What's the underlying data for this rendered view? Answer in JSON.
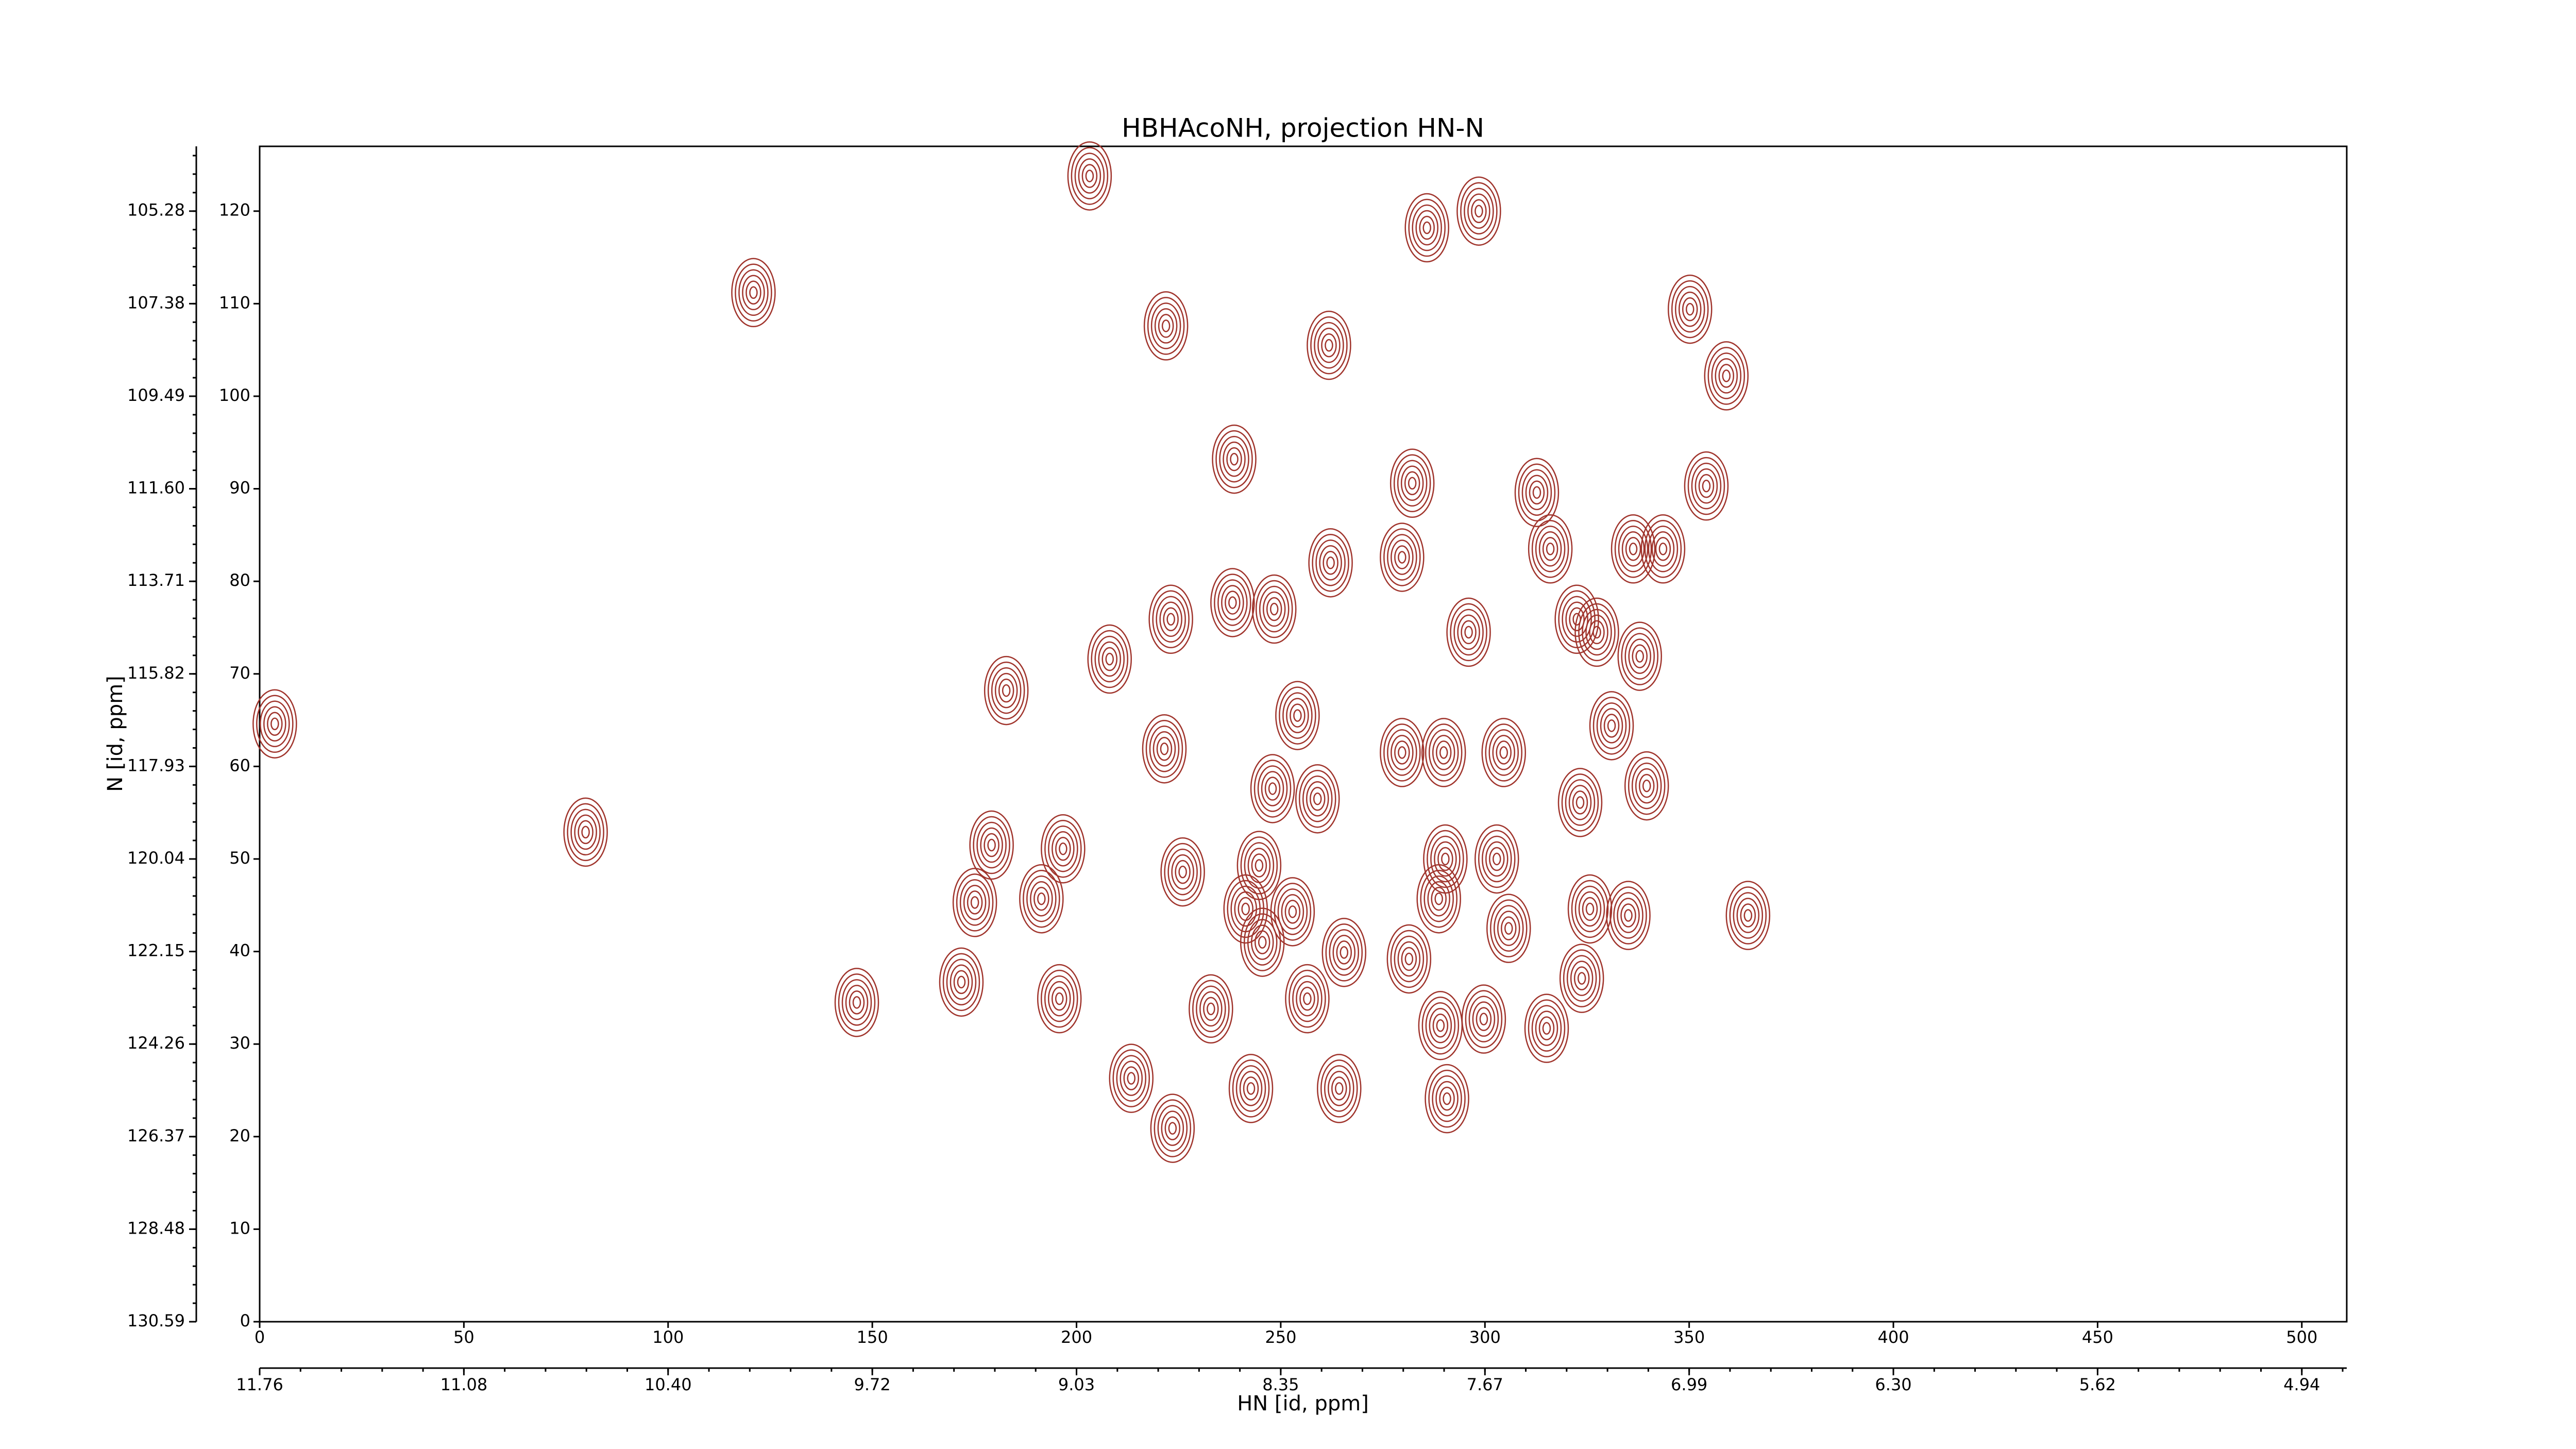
{
  "chart_data": {
    "type": "contour",
    "title": "HBHAcoNH, projection HN-N",
    "x_label": "HN [id, ppm]",
    "y_label": "N [id, ppm]",
    "color": "#a0342c",
    "xlim": [
      0,
      511
    ],
    "ylim": [
      0,
      127
    ],
    "xticks": [
      0,
      50,
      100,
      150,
      200,
      250,
      300,
      350,
      400,
      450,
      500
    ],
    "yticks": [
      0,
      10,
      20,
      30,
      40,
      50,
      60,
      70,
      80,
      90,
      100,
      110,
      120
    ],
    "x_ppm_ticks": [
      {
        "value": 0,
        "label": "11.76"
      },
      {
        "value": 50,
        "label": "11.08"
      },
      {
        "value": 100,
        "label": "10.40"
      },
      {
        "value": 150,
        "label": "9.72"
      },
      {
        "value": 200,
        "label": "9.03"
      },
      {
        "value": 250,
        "label": "8.35"
      },
      {
        "value": 300,
        "label": "7.67"
      },
      {
        "value": 350,
        "label": "6.99"
      },
      {
        "value": 400,
        "label": "6.30"
      },
      {
        "value": 450,
        "label": "5.62"
      },
      {
        "value": 500,
        "label": "4.94"
      }
    ],
    "y_ppm_ticks": [
      {
        "value": 0,
        "label": "130.59"
      },
      {
        "value": 10,
        "label": "128.48"
      },
      {
        "value": 20,
        "label": "126.37"
      },
      {
        "value": 30,
        "label": "124.26"
      },
      {
        "value": 40,
        "label": "122.15"
      },
      {
        "value": 50,
        "label": "120.04"
      },
      {
        "value": 60,
        "label": "117.93"
      },
      {
        "value": 70,
        "label": "115.82"
      },
      {
        "value": 80,
        "label": "113.71"
      },
      {
        "value": 90,
        "label": "111.60"
      },
      {
        "value": 100,
        "label": "109.49"
      },
      {
        "value": 110,
        "label": "107.38"
      },
      {
        "value": 120,
        "label": "105.28"
      }
    ],
    "x": [
      203.2,
      285.8,
      298.5,
      120.9,
      221.9,
      261.8,
      350.2,
      359.1,
      238.6,
      282.2,
      312.7,
      354.2,
      262.2,
      279.7,
      316.0,
      336.3,
      343.6,
      238.2,
      223.1,
      248.4,
      208.1,
      296.0,
      322.5,
      327.4,
      337.9,
      182.8,
      254.1,
      331.0,
      221.5,
      279.7,
      289.9,
      304.6,
      248.0,
      259.0,
      323.3,
      339.6,
      79.8,
      179.2,
      196.7,
      226.0,
      244.7,
      290.3,
      302.9,
      175.1,
      191.4,
      241.4,
      252.9,
      288.7,
      325.7,
      335.1,
      364.4,
      245.5,
      265.5,
      281.4,
      305.8,
      171.8,
      195.8,
      146.2,
      232.9,
      256.5,
      299.7,
      315.1,
      323.7,
      213.4,
      242.7,
      264.3,
      290.7,
      223.5,
      3.7,
      289.1
    ],
    "values": [
      123.8,
      118.2,
      120.0,
      111.2,
      107.6,
      105.5,
      109.4,
      102.2,
      93.2,
      90.6,
      89.6,
      90.3,
      82.0,
      82.6,
      83.5,
      83.5,
      83.5,
      77.7,
      75.9,
      77.0,
      71.6,
      74.5,
      75.9,
      74.5,
      71.9,
      68.2,
      65.5,
      64.4,
      61.9,
      61.5,
      61.5,
      61.5,
      57.6,
      56.5,
      56.1,
      57.9,
      52.9,
      51.5,
      51.1,
      48.6,
      49.3,
      50.0,
      50.0,
      45.3,
      45.7,
      44.6,
      44.3,
      45.7,
      44.6,
      43.9,
      43.9,
      41.0,
      39.9,
      39.2,
      42.5,
      36.7,
      34.9,
      34.5,
      33.8,
      34.9,
      32.7,
      31.7,
      37.1,
      26.3,
      25.2,
      25.2,
      24.1,
      20.9,
      64.6,
      32.0
    ]
  }
}
